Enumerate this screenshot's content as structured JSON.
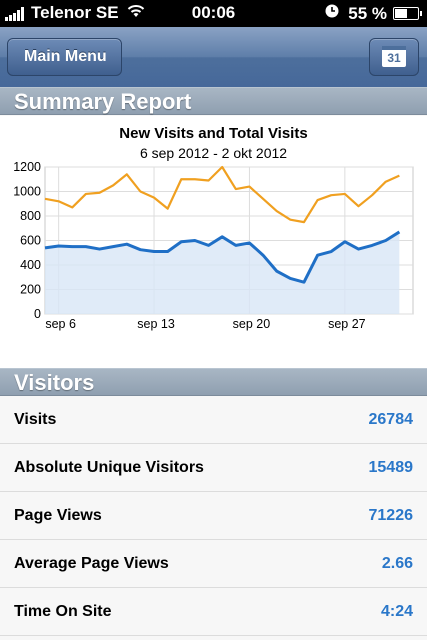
{
  "status_bar": {
    "carrier": "Telenor SE",
    "time": "00:06",
    "battery": "55 %",
    "battery_level": 0.55
  },
  "nav": {
    "back_label": "Main Menu",
    "calendar_day": "31"
  },
  "summary_header": "Summary Report",
  "chart_data": {
    "type": "line",
    "title": "New Visits and Total Visits",
    "subtitle": "6 sep 2012 - 2 okt 2012",
    "x": [
      "2012-09-05",
      "2012-09-06",
      "2012-09-07",
      "2012-09-08",
      "2012-09-09",
      "2012-09-10",
      "2012-09-11",
      "2012-09-12",
      "2012-09-13",
      "2012-09-14",
      "2012-09-15",
      "2012-09-16",
      "2012-09-17",
      "2012-09-18",
      "2012-09-19",
      "2012-09-20",
      "2012-09-21",
      "2012-09-22",
      "2012-09-23",
      "2012-09-24",
      "2012-09-25",
      "2012-09-26",
      "2012-09-27",
      "2012-09-28",
      "2012-09-29",
      "2012-09-30",
      "2012-10-01",
      "2012-10-02"
    ],
    "series": [
      {
        "color": "#f0a020",
        "fill": false,
        "values": [
          940,
          920,
          870,
          980,
          990,
          1050,
          1140,
          1000,
          950,
          860,
          1100,
          1100,
          1090,
          1200,
          1020,
          1040,
          940,
          840,
          770,
          750,
          930,
          970,
          980,
          880,
          970,
          1080,
          1130,
          null
        ]
      },
      {
        "color": "#1f6fc6",
        "fill": true,
        "values": [
          540,
          555,
          550,
          550,
          530,
          550,
          570,
          525,
          510,
          510,
          590,
          600,
          560,
          630,
          560,
          580,
          480,
          350,
          290,
          260,
          480,
          510,
          590,
          530,
          560,
          600,
          670,
          null
        ]
      }
    ],
    "xticks": [
      "sep 6",
      "sep 13",
      "sep 20",
      "sep 27"
    ],
    "xtick_dates": [
      "2012-09-06",
      "2012-09-13",
      "2012-09-20",
      "2012-09-27"
    ],
    "yticks": [
      0,
      200,
      400,
      600,
      800,
      1000,
      1200
    ],
    "ylim": [
      0,
      1200
    ],
    "grid": true
  },
  "visitors_header": "Visitors",
  "visitors": [
    {
      "label": "Visits",
      "value": "26784"
    },
    {
      "label": "Absolute Unique Visitors",
      "value": "15489"
    },
    {
      "label": "Page Views",
      "value": "71226"
    },
    {
      "label": "Average Page Views",
      "value": "2.66"
    },
    {
      "label": "Time On Site",
      "value": "4:24"
    }
  ]
}
